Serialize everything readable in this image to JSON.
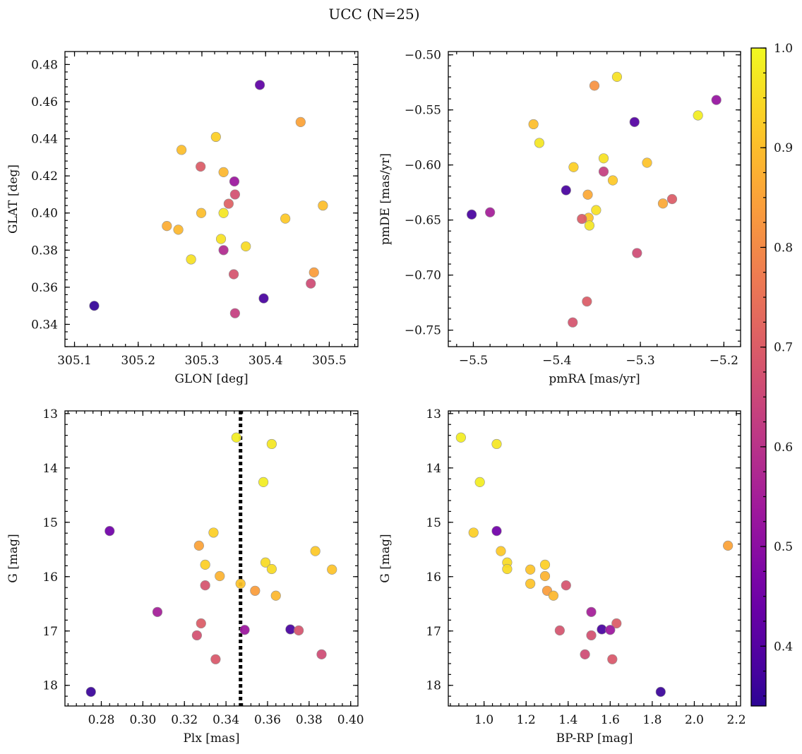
{
  "figure": {
    "title": "UCC (N=25)"
  },
  "colorbar": {
    "colormap": "plasma",
    "range": [
      0.34,
      1.0
    ],
    "ticks": [
      0.4,
      0.5,
      0.6,
      0.7,
      0.8,
      0.9,
      1.0
    ],
    "tick_labels": [
      "0.4",
      "0.5",
      "0.6",
      "0.7",
      "0.8",
      "0.9",
      "1.0"
    ]
  },
  "chart_data": [
    {
      "type": "scatter",
      "id": "glon-glat",
      "xlabel": "GLON [deg]",
      "ylabel": "GLAT [deg]",
      "xlim": [
        305.085,
        305.545
      ],
      "ylim": [
        0.328,
        0.487
      ],
      "x_ticks": [
        305.1,
        305.2,
        305.3,
        305.4,
        305.5
      ],
      "x_tick_labels": [
        "305.1",
        "305.2",
        "305.3",
        "305.4",
        "305.5"
      ],
      "y_ticks": [
        0.34,
        0.36,
        0.38,
        0.4,
        0.42,
        0.44,
        0.46,
        0.48
      ],
      "y_tick_labels": [
        "0.34",
        "0.36",
        "0.38",
        "0.40",
        "0.42",
        "0.44",
        "0.46",
        "0.48"
      ],
      "y_inverted": false,
      "points": [
        {
          "x": 305.391,
          "y": 0.469,
          "c": 0.42
        },
        {
          "x": 305.455,
          "y": 0.449,
          "c": 0.85
        },
        {
          "x": 305.322,
          "y": 0.441,
          "c": 0.93
        },
        {
          "x": 305.268,
          "y": 0.434,
          "c": 0.9
        },
        {
          "x": 305.298,
          "y": 0.425,
          "c": 0.7
        },
        {
          "x": 305.334,
          "y": 0.422,
          "c": 0.89
        },
        {
          "x": 305.351,
          "y": 0.417,
          "c": 0.53
        },
        {
          "x": 305.352,
          "y": 0.41,
          "c": 0.67
        },
        {
          "x": 305.342,
          "y": 0.405,
          "c": 0.71
        },
        {
          "x": 305.49,
          "y": 0.404,
          "c": 0.9
        },
        {
          "x": 305.299,
          "y": 0.4,
          "c": 0.9
        },
        {
          "x": 305.334,
          "y": 0.4,
          "c": 0.97
        },
        {
          "x": 305.431,
          "y": 0.397,
          "c": 0.92
        },
        {
          "x": 305.245,
          "y": 0.393,
          "c": 0.87
        },
        {
          "x": 305.263,
          "y": 0.391,
          "c": 0.89
        },
        {
          "x": 305.33,
          "y": 0.386,
          "c": 0.96
        },
        {
          "x": 305.369,
          "y": 0.382,
          "c": 0.95
        },
        {
          "x": 305.334,
          "y": 0.38,
          "c": 0.58
        },
        {
          "x": 305.283,
          "y": 0.375,
          "c": 0.96
        },
        {
          "x": 305.476,
          "y": 0.368,
          "c": 0.84
        },
        {
          "x": 305.35,
          "y": 0.367,
          "c": 0.68
        },
        {
          "x": 305.471,
          "y": 0.362,
          "c": 0.66
        },
        {
          "x": 305.397,
          "y": 0.354,
          "c": 0.38
        },
        {
          "x": 305.131,
          "y": 0.35,
          "c": 0.35
        },
        {
          "x": 305.352,
          "y": 0.346,
          "c": 0.63
        }
      ]
    },
    {
      "type": "scatter",
      "id": "pmra-pmde",
      "xlabel": "pmRA [mas/yr]",
      "ylabel": "pmDE [mas/yr]",
      "xlim": [
        -5.53,
        -5.18
      ],
      "ylim": [
        -0.765,
        -0.497
      ],
      "x_ticks": [
        -5.5,
        -5.4,
        -5.3,
        -5.2
      ],
      "x_tick_labels": [
        "−5.5",
        "−5.4",
        "−5.3",
        "−5.2"
      ],
      "y_ticks": [
        -0.75,
        -0.7,
        -0.65,
        -0.6,
        -0.55,
        -0.5
      ],
      "y_tick_labels": [
        "−0.75",
        "−0.70",
        "−0.65",
        "−0.60",
        "−0.55",
        "−0.50"
      ],
      "y_inverted": false,
      "points": [
        {
          "x": -5.328,
          "y": -0.52,
          "c": 0.96
        },
        {
          "x": -5.355,
          "y": -0.528,
          "c": 0.82
        },
        {
          "x": -5.209,
          "y": -0.541,
          "c": 0.52
        },
        {
          "x": -5.231,
          "y": -0.555,
          "c": 0.98
        },
        {
          "x": -5.307,
          "y": -0.561,
          "c": 0.4
        },
        {
          "x": -5.428,
          "y": -0.563,
          "c": 0.9
        },
        {
          "x": -5.421,
          "y": -0.58,
          "c": 0.97
        },
        {
          "x": -5.344,
          "y": -0.594,
          "c": 0.96
        },
        {
          "x": -5.292,
          "y": -0.598,
          "c": 0.91
        },
        {
          "x": -5.38,
          "y": -0.602,
          "c": 0.93
        },
        {
          "x": -5.344,
          "y": -0.606,
          "c": 0.63
        },
        {
          "x": -5.333,
          "y": -0.614,
          "c": 0.92
        },
        {
          "x": -5.389,
          "y": -0.623,
          "c": 0.38
        },
        {
          "x": -5.363,
          "y": -0.627,
          "c": 0.86
        },
        {
          "x": -5.262,
          "y": -0.631,
          "c": 0.7
        },
        {
          "x": -5.273,
          "y": -0.635,
          "c": 0.86
        },
        {
          "x": -5.353,
          "y": -0.641,
          "c": 0.96
        },
        {
          "x": -5.48,
          "y": -0.643,
          "c": 0.55
        },
        {
          "x": -5.502,
          "y": -0.645,
          "c": 0.38
        },
        {
          "x": -5.362,
          "y": -0.648,
          "c": 0.91
        },
        {
          "x": -5.37,
          "y": -0.649,
          "c": 0.7
        },
        {
          "x": -5.361,
          "y": -0.655,
          "c": 0.97
        },
        {
          "x": -5.304,
          "y": -0.68,
          "c": 0.66
        },
        {
          "x": -5.364,
          "y": -0.724,
          "c": 0.7
        },
        {
          "x": -5.381,
          "y": -0.743,
          "c": 0.68
        }
      ]
    },
    {
      "type": "scatter",
      "id": "plx-g",
      "xlabel": "Plx [mas]",
      "ylabel": "G [mag]",
      "xlim": [
        0.2625,
        0.4035
      ],
      "ylim": [
        18.38,
        12.95
      ],
      "x_ticks": [
        0.28,
        0.3,
        0.32,
        0.34,
        0.36,
        0.38,
        0.4
      ],
      "x_tick_labels": [
        "0.28",
        "0.30",
        "0.32",
        "0.34",
        "0.36",
        "0.38",
        "0.40"
      ],
      "y_ticks": [
        13,
        14,
        15,
        16,
        17,
        18
      ],
      "y_tick_labels": [
        "13",
        "14",
        "15",
        "16",
        "17",
        "18"
      ],
      "y_inverted": true,
      "vline": 0.347,
      "points": [
        {
          "x": 0.345,
          "y": 13.44,
          "c": 0.98
        },
        {
          "x": 0.362,
          "y": 13.56,
          "c": 0.97
        },
        {
          "x": 0.358,
          "y": 14.26,
          "c": 0.98
        },
        {
          "x": 0.284,
          "y": 15.16,
          "c": 0.45
        },
        {
          "x": 0.334,
          "y": 15.19,
          "c": 0.93
        },
        {
          "x": 0.327,
          "y": 15.43,
          "c": 0.85
        },
        {
          "x": 0.383,
          "y": 15.53,
          "c": 0.92
        },
        {
          "x": 0.359,
          "y": 15.74,
          "c": 0.95
        },
        {
          "x": 0.33,
          "y": 15.78,
          "c": 0.93
        },
        {
          "x": 0.362,
          "y": 15.86,
          "c": 0.95
        },
        {
          "x": 0.391,
          "y": 15.87,
          "c": 0.91
        },
        {
          "x": 0.337,
          "y": 15.99,
          "c": 0.88
        },
        {
          "x": 0.347,
          "y": 16.13,
          "c": 0.91
        },
        {
          "x": 0.33,
          "y": 16.16,
          "c": 0.68
        },
        {
          "x": 0.354,
          "y": 16.26,
          "c": 0.84
        },
        {
          "x": 0.364,
          "y": 16.35,
          "c": 0.89
        },
        {
          "x": 0.307,
          "y": 16.65,
          "c": 0.55
        },
        {
          "x": 0.328,
          "y": 16.86,
          "c": 0.7
        },
        {
          "x": 0.349,
          "y": 16.98,
          "c": 0.53
        },
        {
          "x": 0.371,
          "y": 16.97,
          "c": 0.38
        },
        {
          "x": 0.375,
          "y": 16.99,
          "c": 0.68
        },
        {
          "x": 0.326,
          "y": 17.08,
          "c": 0.67
        },
        {
          "x": 0.386,
          "y": 17.43,
          "c": 0.66
        },
        {
          "x": 0.335,
          "y": 17.52,
          "c": 0.69
        },
        {
          "x": 0.275,
          "y": 18.12,
          "c": 0.36
        }
      ]
    },
    {
      "type": "scatter",
      "id": "bprp-g",
      "xlabel": "BP-RP [mag]",
      "ylabel": "G [mag]",
      "xlim": [
        0.83,
        2.22
      ],
      "ylim": [
        18.38,
        12.95
      ],
      "x_ticks": [
        1.0,
        1.2,
        1.4,
        1.6,
        1.8,
        2.0,
        2.2
      ],
      "x_tick_labels": [
        "1.0",
        "1.2",
        "1.4",
        "1.6",
        "1.8",
        "2.0",
        "2.2"
      ],
      "y_ticks": [
        13,
        14,
        15,
        16,
        17,
        18
      ],
      "y_tick_labels": [
        "13",
        "14",
        "15",
        "16",
        "17",
        "18"
      ],
      "y_inverted": true,
      "points": [
        {
          "x": 0.89,
          "y": 13.44,
          "c": 0.98
        },
        {
          "x": 1.06,
          "y": 13.56,
          "c": 0.97
        },
        {
          "x": 0.98,
          "y": 14.26,
          "c": 0.98
        },
        {
          "x": 0.95,
          "y": 15.19,
          "c": 0.93
        },
        {
          "x": 1.06,
          "y": 15.16,
          "c": 0.45
        },
        {
          "x": 2.16,
          "y": 15.43,
          "c": 0.85
        },
        {
          "x": 1.08,
          "y": 15.53,
          "c": 0.92
        },
        {
          "x": 1.11,
          "y": 15.74,
          "c": 0.95
        },
        {
          "x": 1.29,
          "y": 15.78,
          "c": 0.93
        },
        {
          "x": 1.11,
          "y": 15.86,
          "c": 0.95
        },
        {
          "x": 1.22,
          "y": 15.87,
          "c": 0.91
        },
        {
          "x": 1.29,
          "y": 15.99,
          "c": 0.88
        },
        {
          "x": 1.22,
          "y": 16.13,
          "c": 0.91
        },
        {
          "x": 1.39,
          "y": 16.16,
          "c": 0.68
        },
        {
          "x": 1.3,
          "y": 16.26,
          "c": 0.84
        },
        {
          "x": 1.33,
          "y": 16.35,
          "c": 0.89
        },
        {
          "x": 1.51,
          "y": 16.65,
          "c": 0.55
        },
        {
          "x": 1.63,
          "y": 16.86,
          "c": 0.7
        },
        {
          "x": 1.56,
          "y": 16.97,
          "c": 0.38
        },
        {
          "x": 1.6,
          "y": 16.98,
          "c": 0.53
        },
        {
          "x": 1.36,
          "y": 16.99,
          "c": 0.68
        },
        {
          "x": 1.51,
          "y": 17.08,
          "c": 0.67
        },
        {
          "x": 1.48,
          "y": 17.43,
          "c": 0.66
        },
        {
          "x": 1.61,
          "y": 17.52,
          "c": 0.69
        },
        {
          "x": 1.84,
          "y": 18.12,
          "c": 0.36
        }
      ]
    }
  ]
}
